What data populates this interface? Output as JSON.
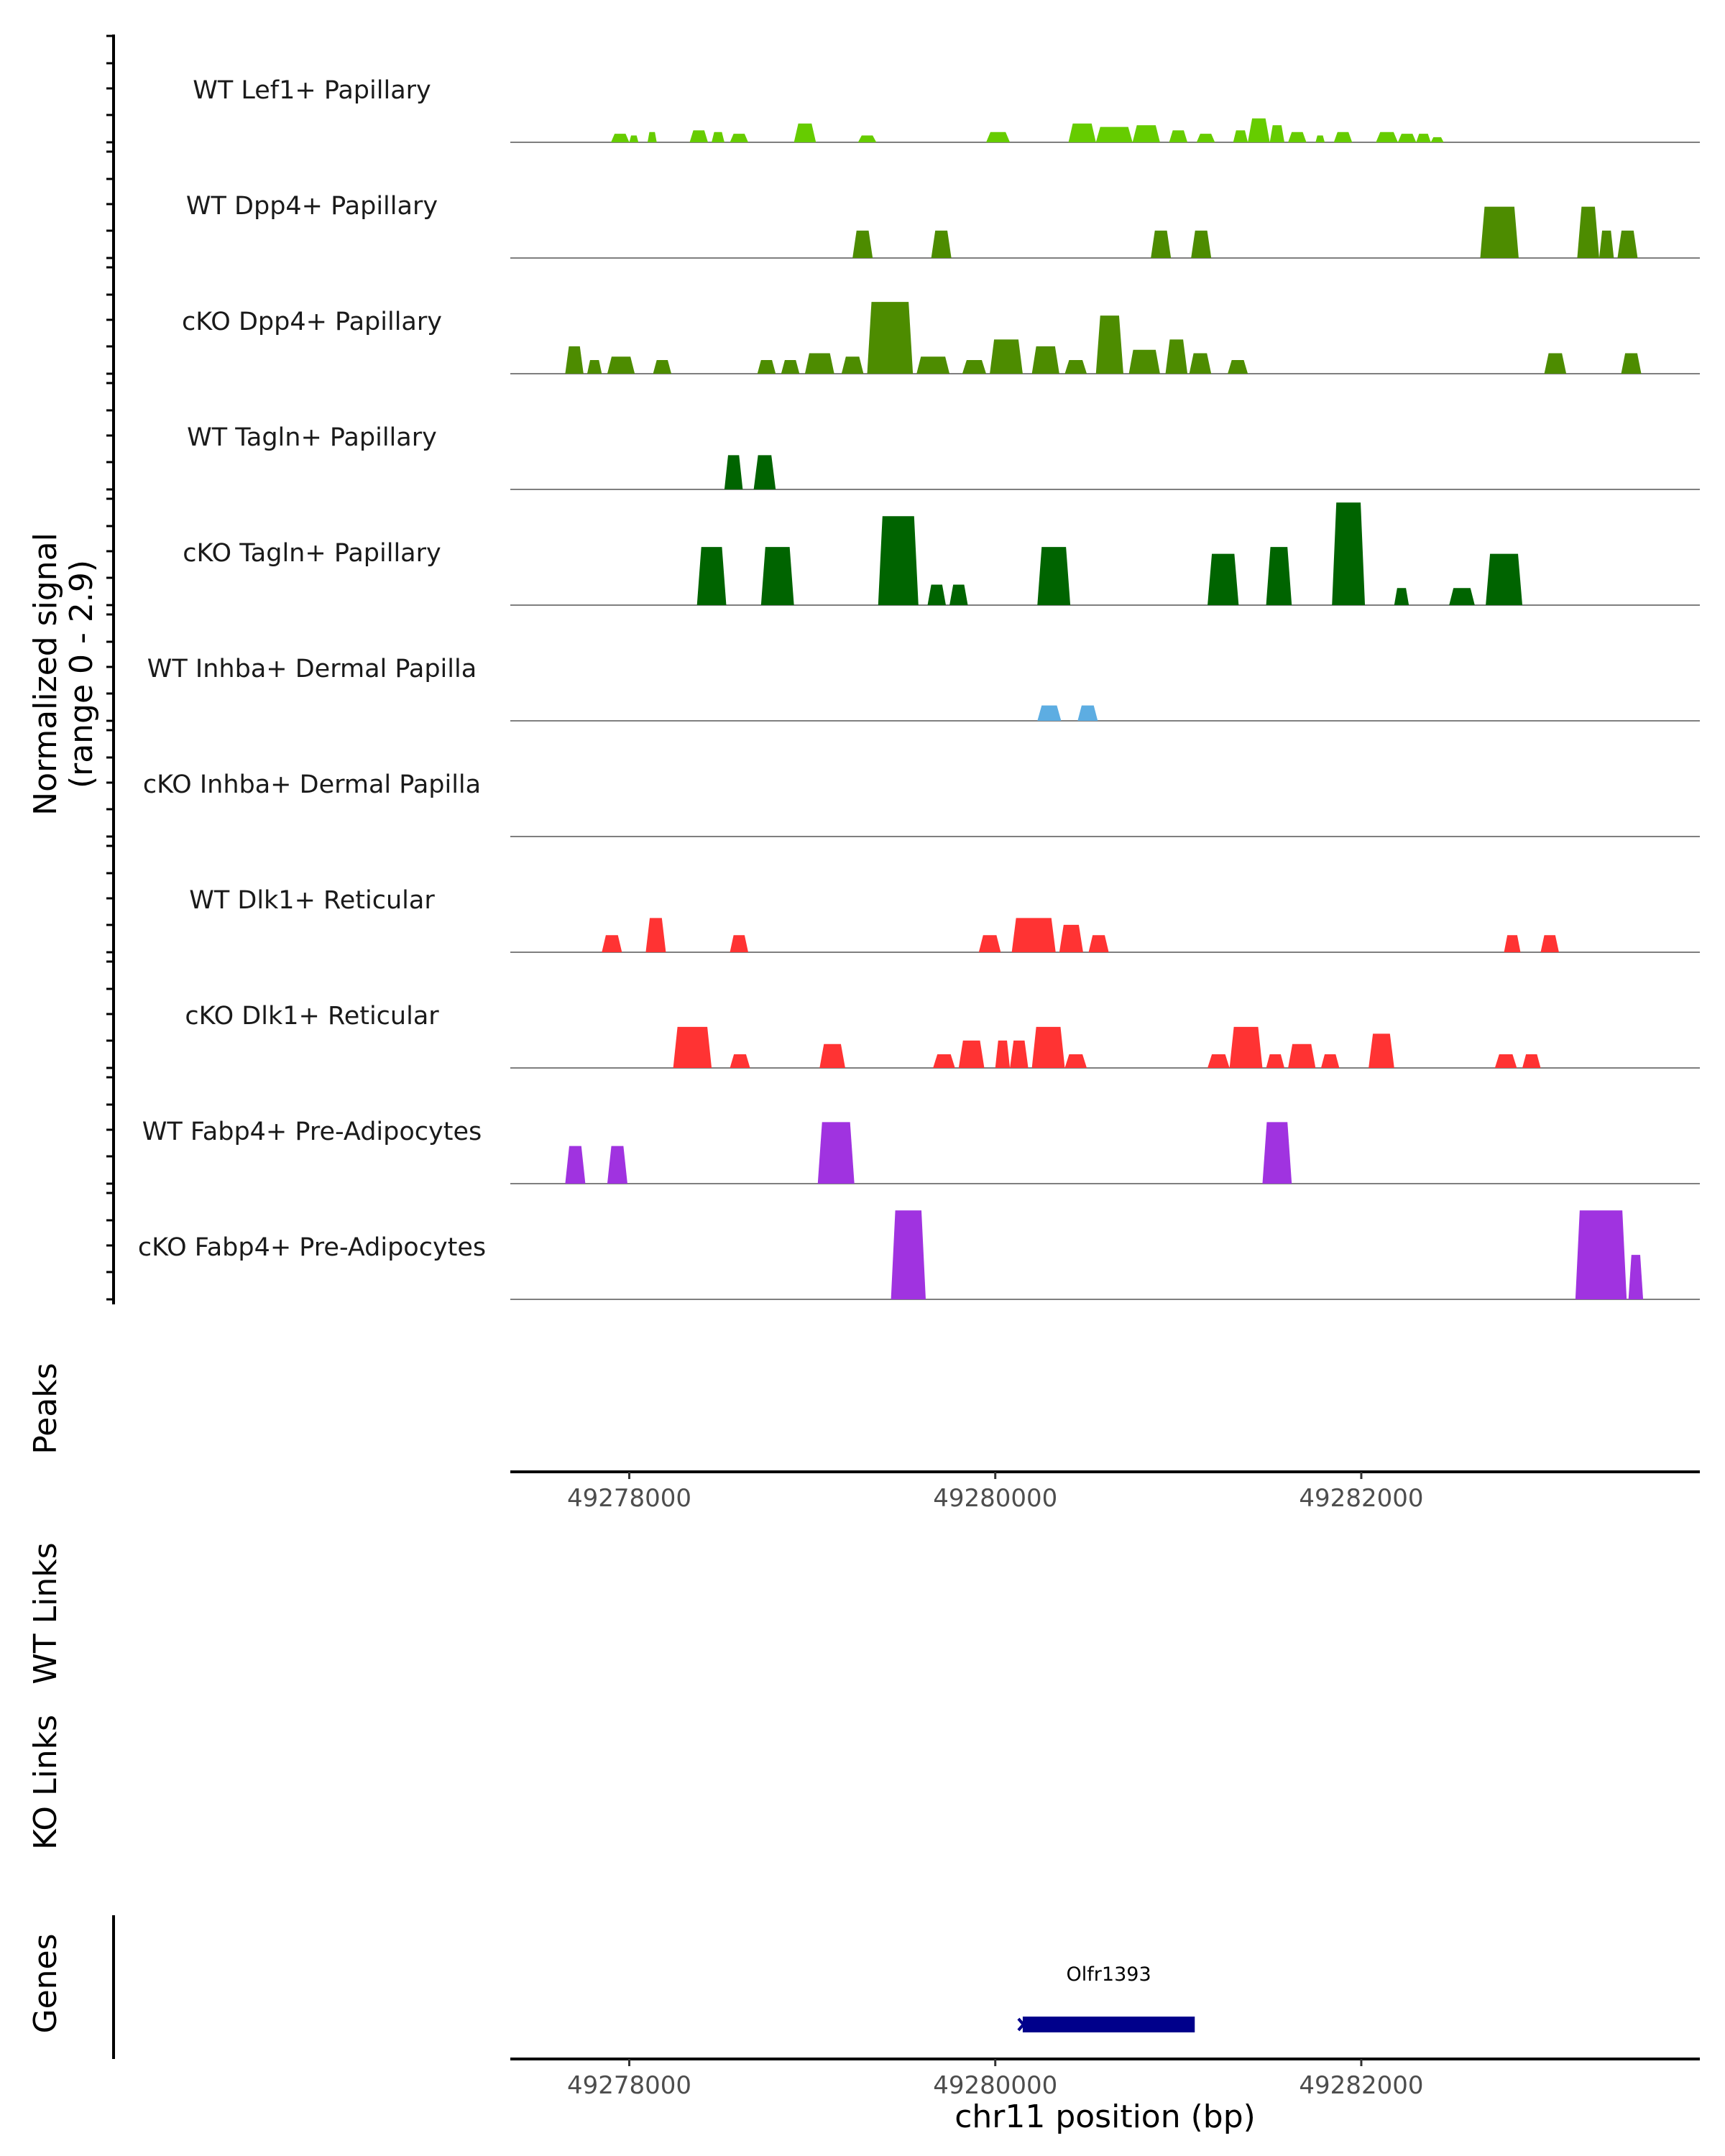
{
  "chart_data": {
    "type": "area",
    "title": "",
    "xlabel": "chr11 position (bp)",
    "ylabel": "Normalized signal",
    "ylabel_range": "(range 0 - 2.9)",
    "xlim": [
      49277350,
      49283850
    ],
    "ylim": [
      0,
      2.9
    ],
    "x_ticks": [
      49278000,
      49280000,
      49282000
    ],
    "x_tick_labels": [
      "49278000",
      "49280000",
      "49282000"
    ],
    "tracks": [
      {
        "name": "WT Lef1+ Papillary",
        "color": "#66cc00",
        "regions": [
          [
            49277900,
            49278000,
            0.25
          ],
          [
            49278000,
            49278050,
            0.2
          ],
          [
            49278100,
            49278150,
            0.3
          ],
          [
            49278330,
            49278430,
            0.35
          ],
          [
            49278450,
            49278520,
            0.3
          ],
          [
            49278550,
            49278650,
            0.25
          ],
          [
            49278900,
            49279020,
            0.55
          ],
          [
            49279250,
            49279350,
            0.2
          ],
          [
            49279950,
            49280080,
            0.3
          ],
          [
            49280400,
            49280550,
            0.55
          ],
          [
            49280550,
            49280750,
            0.45
          ],
          [
            49280750,
            49280900,
            0.5
          ],
          [
            49280950,
            49281050,
            0.35
          ],
          [
            49281100,
            49281200,
            0.25
          ],
          [
            49281300,
            49281380,
            0.35
          ],
          [
            49281380,
            49281500,
            0.7
          ],
          [
            49281500,
            49281580,
            0.5
          ],
          [
            49281600,
            49281700,
            0.3
          ],
          [
            49281750,
            49281800,
            0.2
          ],
          [
            49281850,
            49281950,
            0.3
          ],
          [
            49282080,
            49282200,
            0.3
          ],
          [
            49282200,
            49282300,
            0.25
          ],
          [
            49282300,
            49282380,
            0.25
          ],
          [
            49282380,
            49282450,
            0.15
          ]
        ]
      },
      {
        "name": "WT Dpp4+ Papillary",
        "color": "#4d8c00",
        "regions": [
          [
            49279220,
            49279330,
            0.8
          ],
          [
            49279650,
            49279760,
            0.8
          ],
          [
            49280850,
            49280960,
            0.8
          ],
          [
            49281070,
            49281180,
            0.8
          ],
          [
            49282650,
            49282860,
            1.5
          ],
          [
            49283180,
            49283300,
            1.5
          ],
          [
            49283300,
            49283380,
            0.8
          ],
          [
            49283400,
            49283510,
            0.8
          ]
        ]
      },
      {
        "name": "cKO Dpp4+ Papillary",
        "color": "#4d8c00",
        "regions": [
          [
            49277650,
            49277750,
            0.8
          ],
          [
            49277770,
            49277850,
            0.4
          ],
          [
            49277880,
            49278030,
            0.5
          ],
          [
            49278130,
            49278230,
            0.4
          ],
          [
            49278700,
            49278800,
            0.4
          ],
          [
            49278830,
            49278930,
            0.4
          ],
          [
            49278960,
            49279120,
            0.6
          ],
          [
            49279160,
            49279280,
            0.5
          ],
          [
            49279300,
            49279550,
            2.1
          ],
          [
            49279570,
            49279750,
            0.5
          ],
          [
            49279820,
            49279950,
            0.4
          ],
          [
            49279970,
            49280150,
            1.0
          ],
          [
            49280200,
            49280350,
            0.8
          ],
          [
            49280380,
            49280500,
            0.4
          ],
          [
            49280550,
            49280700,
            1.7
          ],
          [
            49280730,
            49280900,
            0.7
          ],
          [
            49280930,
            49281050,
            1.0
          ],
          [
            49281060,
            49281180,
            0.6
          ],
          [
            49281270,
            49281380,
            0.4
          ],
          [
            49283000,
            49283120,
            0.6
          ],
          [
            49283420,
            49283530,
            0.6
          ]
        ]
      },
      {
        "name": "WT Tagln+ Papillary",
        "color": "#006400",
        "regions": [
          [
            49278520,
            49278620,
            1.0
          ],
          [
            49278680,
            49278800,
            1.0
          ]
        ]
      },
      {
        "name": "cKO Tagln+ Papillary",
        "color": "#006400",
        "regions": [
          [
            49278370,
            49278530,
            1.7
          ],
          [
            49278720,
            49278900,
            1.7
          ],
          [
            49279360,
            49279580,
            2.6
          ],
          [
            49279630,
            49279730,
            0.6
          ],
          [
            49279750,
            49279850,
            0.6
          ],
          [
            49280230,
            49280410,
            1.7
          ],
          [
            49281160,
            49281330,
            1.5
          ],
          [
            49281480,
            49281620,
            1.7
          ],
          [
            49281840,
            49282020,
            3.0
          ],
          [
            49282180,
            49282260,
            0.5
          ],
          [
            49282480,
            49282620,
            0.5
          ],
          [
            49282680,
            49282880,
            1.5
          ]
        ]
      },
      {
        "name": "WT Inhba+ Dermal Papilla",
        "color": "#5dade2",
        "regions": [
          [
            49280230,
            49280360,
            0.45
          ],
          [
            49280450,
            49280560,
            0.45
          ]
        ]
      },
      {
        "name": "cKO Inhba+ Dermal Papilla",
        "color": "#5dade2",
        "regions": []
      },
      {
        "name": "WT Dlk1+ Reticular",
        "color": "#ff3333",
        "regions": [
          [
            49277850,
            49277960,
            0.5
          ],
          [
            49278090,
            49278200,
            1.0
          ],
          [
            49278550,
            49278650,
            0.5
          ],
          [
            49279910,
            49280030,
            0.5
          ],
          [
            49280090,
            49280330,
            1.0
          ],
          [
            49280350,
            49280480,
            0.8
          ],
          [
            49280510,
            49280620,
            0.5
          ],
          [
            49282780,
            49282870,
            0.5
          ],
          [
            49282980,
            49283080,
            0.5
          ]
        ]
      },
      {
        "name": "cKO Dlk1+ Reticular",
        "color": "#ff3333",
        "regions": [
          [
            49278240,
            49278450,
            1.2
          ],
          [
            49278550,
            49278660,
            0.4
          ],
          [
            49279040,
            49279180,
            0.7
          ],
          [
            49279660,
            49279780,
            0.4
          ],
          [
            49279800,
            49279940,
            0.8
          ],
          [
            49280000,
            49280080,
            0.8
          ],
          [
            49280080,
            49280180,
            0.8
          ],
          [
            49280200,
            49280380,
            1.2
          ],
          [
            49280380,
            49280500,
            0.4
          ],
          [
            49281160,
            49281280,
            0.4
          ],
          [
            49281280,
            49281460,
            1.2
          ],
          [
            49281480,
            49281580,
            0.4
          ],
          [
            49281600,
            49281750,
            0.7
          ],
          [
            49281780,
            49281880,
            0.4
          ],
          [
            49282040,
            49282180,
            1.0
          ],
          [
            49282730,
            49282850,
            0.4
          ],
          [
            49282880,
            49282980,
            0.4
          ]
        ]
      },
      {
        "name": "WT Fabp4+ Pre-Adipocytes",
        "color": "#a033e0",
        "regions": [
          [
            49277650,
            49277760,
            1.1
          ],
          [
            49277880,
            49277990,
            1.1
          ],
          [
            49279030,
            49279230,
            1.8
          ],
          [
            49281460,
            49281620,
            1.8
          ]
        ]
      },
      {
        "name": "cKO Fabp4+ Pre-Adipocytes",
        "color": "#a033e0",
        "regions": [
          [
            49279430,
            49279620,
            2.6
          ],
          [
            49283170,
            49283450,
            2.6
          ],
          [
            49283460,
            49283540,
            1.3
          ]
        ]
      }
    ],
    "side_panels": [
      "Peaks",
      "WT Links",
      "KO Links",
      "Genes"
    ],
    "genes": [
      {
        "name": "Olfr1393",
        "start": 49280150,
        "end": 49281090,
        "strand": "-",
        "color": "#00008b"
      }
    ]
  }
}
